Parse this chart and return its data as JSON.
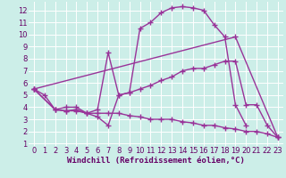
{
  "background_color": "#cceee8",
  "grid_color": "#ffffff",
  "line_color": "#993399",
  "marker": "+",
  "markersize": 4,
  "linewidth": 1.0,
  "xlabel": "Windchill (Refroidissement éolien,°C)",
  "xlabel_fontsize": 6.5,
  "tick_fontsize": 6,
  "xlim": [
    -0.5,
    23.5
  ],
  "ylim": [
    0.8,
    12.7
  ],
  "xticks": [
    0,
    1,
    2,
    3,
    4,
    5,
    6,
    7,
    8,
    9,
    10,
    11,
    12,
    13,
    14,
    15,
    16,
    17,
    18,
    19,
    20,
    21,
    22,
    23
  ],
  "yticks": [
    1,
    2,
    3,
    4,
    5,
    6,
    7,
    8,
    9,
    10,
    11,
    12
  ],
  "lines": [
    {
      "x": [
        0,
        1,
        2,
        3,
        4,
        5,
        6,
        7,
        8,
        9,
        10,
        11,
        12,
        13,
        14,
        15,
        16,
        17,
        18,
        19,
        20
      ],
      "y": [
        5.5,
        5.0,
        3.8,
        3.7,
        3.7,
        3.5,
        3.2,
        2.5,
        5.0,
        5.2,
        10.5,
        11.0,
        11.8,
        12.2,
        12.3,
        12.2,
        12.0,
        10.8,
        9.8,
        4.2,
        2.5
      ]
    },
    {
      "x": [
        0,
        2,
        3,
        4,
        5,
        6,
        7,
        8,
        9,
        10,
        11,
        12,
        13,
        14,
        15,
        16,
        17,
        18,
        19,
        20,
        21,
        22,
        23
      ],
      "y": [
        5.5,
        3.8,
        4.0,
        4.0,
        3.5,
        3.8,
        8.5,
        5.0,
        5.2,
        5.5,
        5.8,
        6.2,
        6.5,
        7.0,
        7.2,
        7.2,
        7.5,
        7.8,
        7.8,
        4.2,
        4.2,
        2.5,
        1.5
      ]
    },
    {
      "x": [
        0,
        2,
        3,
        4,
        5,
        6,
        7,
        8,
        9,
        10,
        11,
        12,
        13,
        14,
        15,
        16,
        17,
        18,
        19,
        20,
        21,
        22,
        23
      ],
      "y": [
        5.5,
        3.8,
        3.7,
        3.8,
        3.5,
        3.5,
        3.5,
        3.5,
        3.3,
        3.2,
        3.0,
        3.0,
        3.0,
        2.8,
        2.7,
        2.5,
        2.5,
        2.3,
        2.2,
        2.0,
        2.0,
        1.8,
        1.5
      ]
    },
    {
      "x": [
        0,
        19,
        23
      ],
      "y": [
        5.5,
        9.8,
        1.5
      ]
    }
  ]
}
